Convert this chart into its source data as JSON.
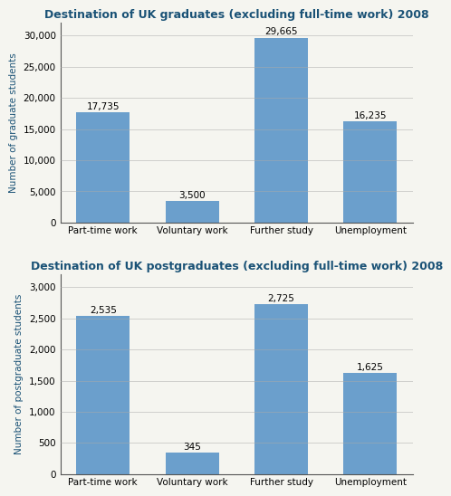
{
  "grad_title": "Destination of UK graduates (excluding full-time work) 2008",
  "postgrad_title": "Destination of UK postgraduates (excluding full-time work) 2008",
  "categories": [
    "Part-time work",
    "Voluntary work",
    "Further study",
    "Unemployment"
  ],
  "grad_values": [
    17735,
    3500,
    29665,
    16235
  ],
  "grad_labels": [
    "17,735",
    "3,500",
    "29,665",
    "16,235"
  ],
  "postgrad_values": [
    2535,
    345,
    2725,
    1625
  ],
  "postgrad_labels": [
    "2,535",
    "345",
    "2,725",
    "1,625"
  ],
  "bar_color": "#6B9FCC",
  "grad_ylabel": "Number of graduate students",
  "postgrad_ylabel": "Number of postgraduate students",
  "grad_ylim": [
    0,
    32000
  ],
  "postgrad_ylim": [
    0,
    3200
  ],
  "grad_yticks": [
    0,
    5000,
    10000,
    15000,
    20000,
    25000,
    30000
  ],
  "postgrad_yticks": [
    0,
    500,
    1000,
    1500,
    2000,
    2500,
    3000
  ],
  "title_color": "#1A5276",
  "ylabel_color": "#1A5276",
  "title_fontsize": 9,
  "label_fontsize": 7.5,
  "ylabel_fontsize": 7.5,
  "tick_fontsize": 7.5,
  "background_color": "#F5F5F0",
  "grid_color": "#AAAAAA",
  "bar_width": 0.6
}
